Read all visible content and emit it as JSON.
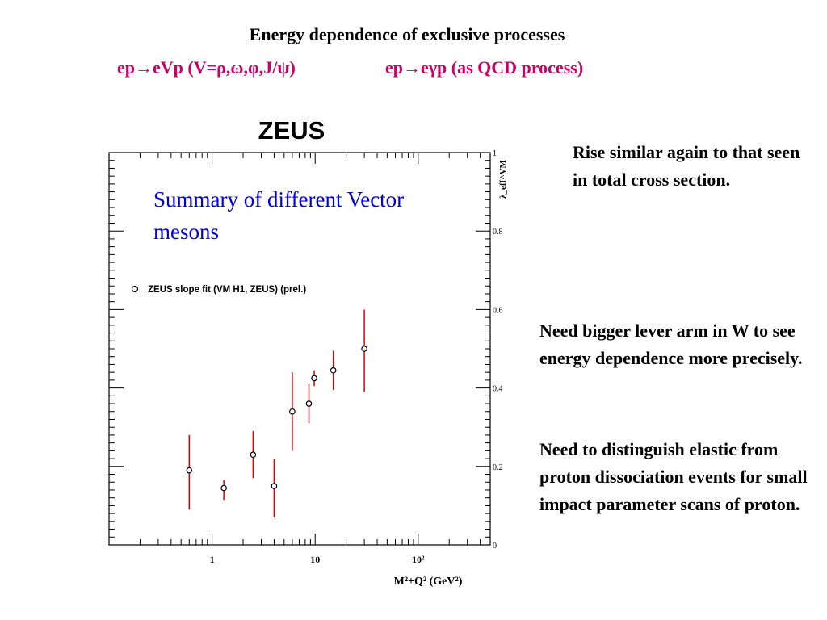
{
  "colors": {
    "heading": "#000000",
    "subtitle": "#cc0066",
    "summary_text": "#0000dd",
    "error_bar": "#dd0000",
    "marker": "#000000"
  },
  "heading": {
    "title": "Energy dependence of exclusive processes",
    "subtitle_left": "ep→eVp (V=ρ,ω,φ,J/ψ)",
    "subtitle_right": "ep→eγp (as QCD process)"
  },
  "notes": {
    "rise": "Rise similar again to that seen in total cross section.",
    "lever_arm": "Need bigger lever arm in W to see energy dependence more precisely.",
    "distinguish": "Need to distinguish elastic from proton dissociation events for small impact parameter scans of proton."
  },
  "chart_data": {
    "type": "scatter",
    "title": "ZEUS",
    "annotation": "Summary of different Vector mesons",
    "xlabel": "M²+Q² (GeV²)",
    "ylabel": "λ_eff^VM",
    "x_scale": "log",
    "xlim": [
      0.1,
      500
    ],
    "ylim": [
      0,
      1
    ],
    "x_tick_labels": [
      "1",
      "10",
      "10²"
    ],
    "y_tick_labels": [
      "0",
      "0.2",
      "0.4",
      "0.6",
      "0.8",
      "1"
    ],
    "legend": {
      "placement": "middle-left",
      "entries": [
        "ZEUS slope fit (VM H1, ZEUS) (prel.)"
      ]
    },
    "series": [
      {
        "name": "ZEUS slope fit (VM H1, ZEUS) (prel.)",
        "marker": "open-circle",
        "points": [
          {
            "x": 0.6,
            "y": 0.19,
            "err_low": 0.1,
            "err_high": 0.09
          },
          {
            "x": 1.3,
            "y": 0.145,
            "err_low": 0.03,
            "err_high": 0.02
          },
          {
            "x": 2.5,
            "y": 0.23,
            "err_low": 0.06,
            "err_high": 0.06
          },
          {
            "x": 4.0,
            "y": 0.15,
            "err_low": 0.08,
            "err_high": 0.07
          },
          {
            "x": 6.0,
            "y": 0.34,
            "err_low": 0.1,
            "err_high": 0.1
          },
          {
            "x": 8.7,
            "y": 0.36,
            "err_low": 0.05,
            "err_high": 0.05
          },
          {
            "x": 9.8,
            "y": 0.425,
            "err_low": 0.02,
            "err_high": 0.02
          },
          {
            "x": 15.0,
            "y": 0.445,
            "err_low": 0.05,
            "err_high": 0.05
          },
          {
            "x": 30.0,
            "y": 0.5,
            "err_low": 0.11,
            "err_high": 0.1
          }
        ]
      }
    ]
  }
}
